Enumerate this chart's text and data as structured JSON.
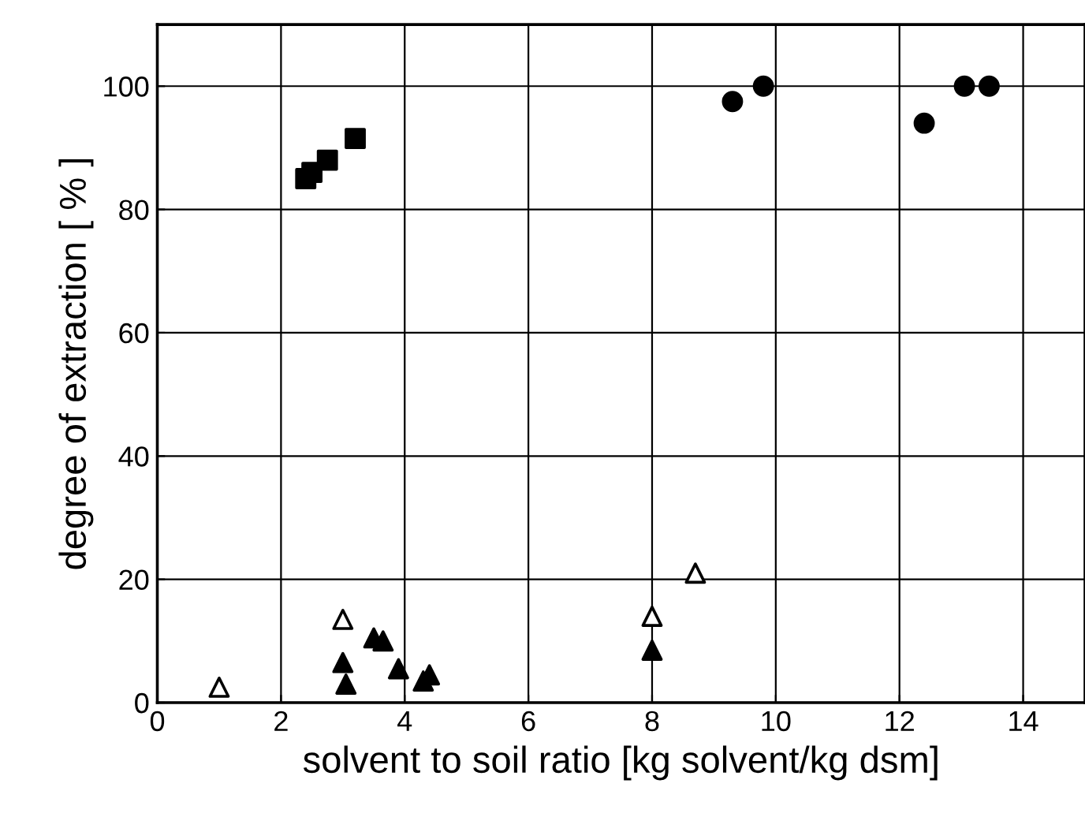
{
  "chart_data": {
    "type": "scatter",
    "xlabel": "solvent to soil ratio [kg solvent/kg dsm]",
    "ylabel": "degree of extraction [ % ]",
    "xlim": [
      0,
      15
    ],
    "ylim": [
      0,
      110
    ],
    "xticks": [
      0,
      2,
      4,
      6,
      8,
      10,
      12,
      14
    ],
    "yticks": [
      0,
      20,
      40,
      60,
      80,
      100
    ],
    "grid": true,
    "series": [
      {
        "color": "#000000",
        "marker": "square",
        "x": [
          2.4,
          2.5,
          2.75,
          3.2
        ],
        "values": [
          85,
          86,
          88,
          91.5
        ]
      },
      {
        "color": "#000000",
        "marker": "circle",
        "x": [
          9.3,
          9.8,
          12.4,
          13.05,
          13.45
        ],
        "values": [
          97.5,
          100,
          94,
          100,
          100
        ]
      },
      {
        "color": "#ffffff",
        "marker": "triangle",
        "x": [
          1,
          3,
          8,
          8.7
        ],
        "values": [
          2.5,
          13.5,
          14,
          21
        ]
      },
      {
        "color": "#000000",
        "marker": "triangle",
        "x": [
          3,
          3.05,
          3.5,
          3.65,
          3.9,
          4.3,
          4.4,
          8
        ],
        "values": [
          6.5,
          3,
          10.5,
          10,
          5.5,
          3.5,
          4.5,
          8.5
        ]
      }
    ]
  }
}
